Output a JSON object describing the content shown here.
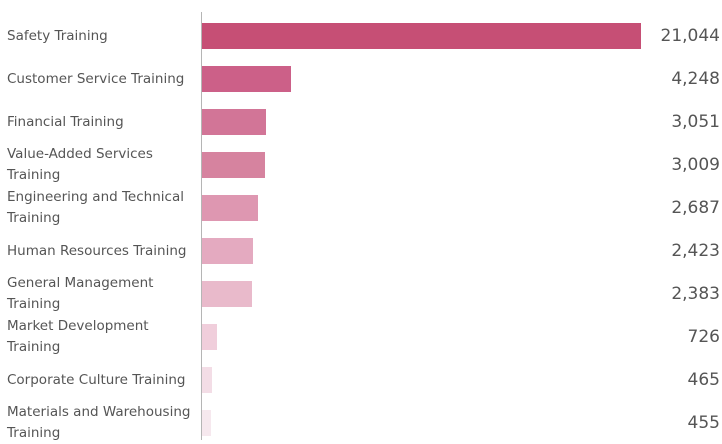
{
  "chart_data": {
    "type": "bar",
    "orientation": "horizontal",
    "categories": [
      "Safety Training",
      "Customer Service Training",
      "Financial Training",
      "Value-Added Services Training",
      "Engineering and Technical Training",
      "Human Resources Training",
      "General Management Training",
      "Market Development Training",
      "Corporate Culture Training",
      "Materials and Warehousing Training"
    ],
    "values": [
      21044,
      4248,
      3051,
      3009,
      2687,
      2423,
      2383,
      726,
      465,
      455
    ],
    "value_labels": [
      "21,044",
      "4,248",
      "3,051",
      "3,009",
      "2,687",
      "2,423",
      "2,383",
      "726",
      "465",
      "455"
    ],
    "xlim": [
      0,
      21044
    ],
    "grid": false,
    "colors": [
      "#c64f75",
      "#cc6088",
      "#d27597",
      "#d6839f",
      "#de97b1",
      "#e4aac0",
      "#e9bacb",
      "#f0cedb",
      "#f3dde6",
      "#f6e8ee"
    ]
  }
}
